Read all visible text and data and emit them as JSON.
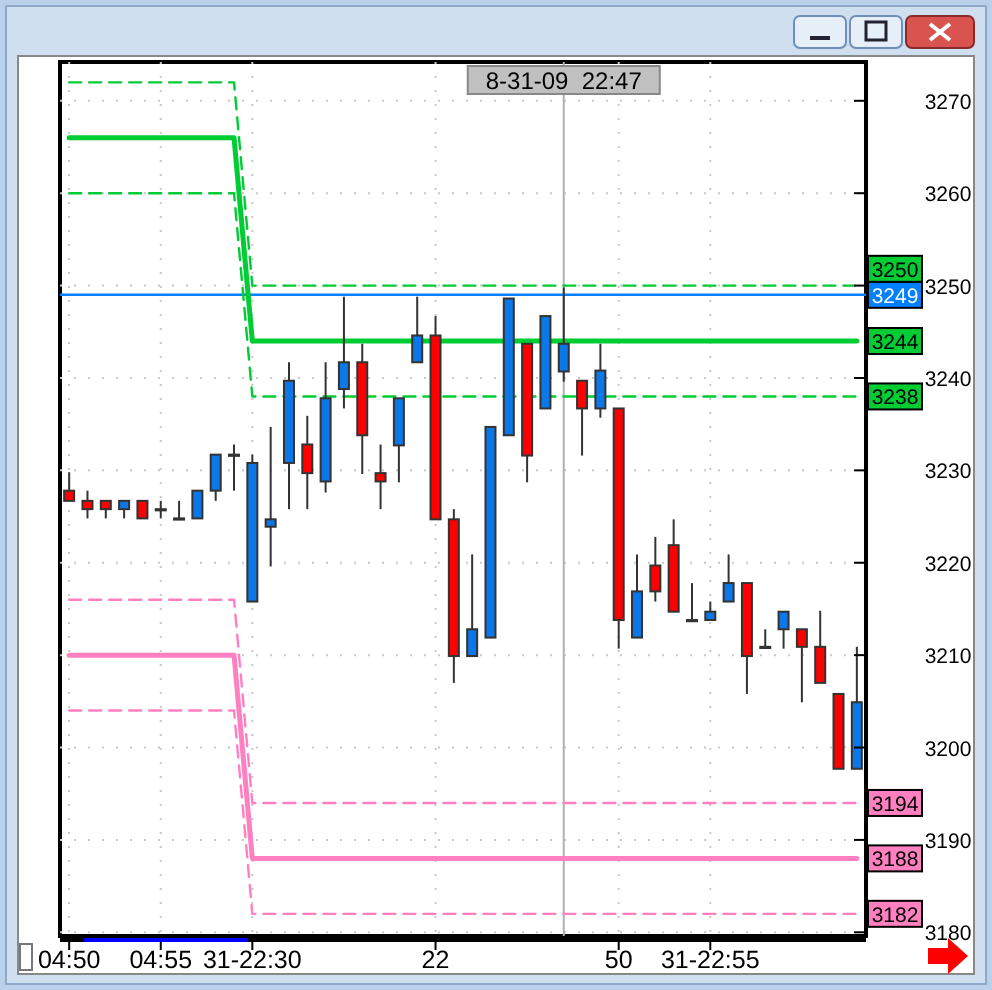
{
  "chart_data": {
    "type": "candlestick",
    "categories": [
      "04:50",
      null,
      null,
      null,
      null,
      "04:55",
      null,
      null,
      null,
      null,
      "31-22:30",
      null,
      null,
      null,
      null,
      null,
      null,
      null,
      null,
      null,
      "22",
      null,
      null,
      null,
      null,
      null,
      null,
      null,
      null,
      null,
      "50",
      null,
      null,
      null,
      null,
      "31-22:55",
      null,
      null,
      null,
      null,
      null,
      null,
      null,
      null
    ],
    "ohlc": [
      [
        3227.8,
        3229.8,
        3226.7,
        3226.7
      ],
      [
        3226.7,
        3227.8,
        3224.8,
        3225.8
      ],
      [
        3226.7,
        3226.7,
        3224.8,
        3225.8
      ],
      [
        3225.8,
        3226.7,
        3224.8,
        3226.7
      ],
      [
        3226.7,
        3226.7,
        3224.8,
        3224.8
      ],
      [
        3225.8,
        3226.7,
        3224.8,
        3225.8
      ],
      [
        3224.8,
        3226.7,
        3224.8,
        3224.8
      ],
      [
        3224.8,
        3227.8,
        3224.8,
        3227.8
      ],
      [
        3227.8,
        3231.7,
        3226.7,
        3231.7
      ],
      [
        3231.7,
        3232.8,
        3227.8,
        3231.7
      ],
      [
        3215.8,
        3231.7,
        3215.8,
        3230.8
      ],
      [
        3223.9,
        3234.7,
        3219.6,
        3224.7
      ],
      [
        3230.8,
        3241.7,
        3225.8,
        3239.7
      ],
      [
        3232.8,
        3235.9,
        3225.8,
        3229.7
      ],
      [
        3228.8,
        3241.7,
        3227.6,
        3237.8
      ],
      [
        3238.8,
        3248.8,
        3236.7,
        3241.7
      ],
      [
        3241.7,
        3243.7,
        3229.6,
        3233.8
      ],
      [
        3229.7,
        3232.8,
        3225.8,
        3228.8
      ],
      [
        3232.7,
        3237.8,
        3228.7,
        3237.8
      ],
      [
        3241.7,
        3248.8,
        3241.7,
        3244.6
      ],
      [
        3244.6,
        3246.7,
        3224.7,
        3224.7
      ],
      [
        3224.7,
        3225.8,
        3207.0,
        3209.9
      ],
      [
        3209.9,
        3220.9,
        3209.9,
        3212.8
      ],
      [
        3211.9,
        3234.7,
        3211.9,
        3234.7
      ],
      [
        3233.8,
        3248.6,
        3233.8,
        3248.6
      ],
      [
        3243.7,
        3243.7,
        3228.7,
        3231.6
      ],
      [
        3236.7,
        3246.7,
        3236.7,
        3246.7
      ],
      [
        3240.7,
        3249.8,
        3239.6,
        3243.7
      ],
      [
        3239.7,
        3239.7,
        3231.6,
        3236.7
      ],
      [
        3236.7,
        3243.7,
        3235.7,
        3240.8
      ],
      [
        3236.7,
        3236.7,
        3210.7,
        3213.8
      ],
      [
        3211.9,
        3220.9,
        3211.9,
        3216.9
      ],
      [
        3219.7,
        3222.8,
        3215.8,
        3216.9
      ],
      [
        3221.9,
        3224.7,
        3214.7,
        3214.7
      ],
      [
        3213.8,
        3217.8,
        3213.8,
        3213.8
      ],
      [
        3213.8,
        3215.8,
        3213.8,
        3214.7
      ],
      [
        3215.8,
        3220.9,
        3215.8,
        3217.8
      ],
      [
        3217.8,
        3217.8,
        3205.8,
        3209.9
      ],
      [
        3210.9,
        3212.8,
        3210.9,
        3210.9
      ],
      [
        3212.8,
        3214.7,
        3210.7,
        3214.7
      ],
      [
        3212.8,
        3212.8,
        3204.9,
        3210.9
      ],
      [
        3210.9,
        3214.8,
        3207.0,
        3207.0
      ],
      [
        3205.8,
        3205.8,
        3197.7,
        3197.7
      ],
      [
        3197.7,
        3210.9,
        3197.7,
        3204.9
      ]
    ],
    "colors": [
      "#ff0000",
      "#ff0000",
      "#ff0000",
      "#0a78e8",
      "#ff0000",
      "#404040",
      "#404040",
      "#0a78e8",
      "#0a78e8",
      "#404040",
      "#0a78e8",
      "#0a78e8",
      "#0a78e8",
      "#ff0000",
      "#0a78e8",
      "#0a78e8",
      "#ff0000",
      "#ff0000",
      "#0a78e8",
      "#0a78e8",
      "#ff0000",
      "#ff0000",
      "#0a78e8",
      "#0a78e8",
      "#0a78e8",
      "#ff0000",
      "#0a78e8",
      "#0a78e8",
      "#ff0000",
      "#0a78e8",
      "#ff0000",
      "#0a78e8",
      "#ff0000",
      "#ff0000",
      "#404040",
      "#0a78e8",
      "#0a78e8",
      "#ff0000",
      "#404040",
      "#0a78e8",
      "#ff0000",
      "#ff0000",
      "#ff0000",
      "#0a78e8"
    ],
    "ylim": [
      3179.6,
      3274.2
    ],
    "yticks": [
      3180,
      3190,
      3200,
      3210,
      3220,
      3230,
      3240,
      3250,
      3260,
      3270
    ],
    "grid": true,
    "series": [
      {
        "type": "line",
        "color": "#00cc33",
        "line_style": "dashed",
        "values": [
          3272,
          3272,
          3272,
          3272,
          3272,
          3272,
          3272,
          3272,
          3272,
          3272,
          3250,
          3250,
          3250,
          3250,
          3250,
          3250,
          3250,
          3250,
          3250,
          3250,
          3250,
          3250,
          3250,
          3250,
          3250,
          3250,
          3250,
          3250,
          3250,
          3250,
          3250,
          3250,
          3250,
          3250,
          3250,
          3250,
          3250,
          3250,
          3250,
          3250,
          3250,
          3250,
          3250,
          3250
        ],
        "value_labels": [
          null,
          null,
          null,
          null,
          null,
          null,
          null,
          null,
          null,
          null,
          null,
          null,
          null,
          null,
          null,
          null,
          null,
          null,
          null,
          null,
          null,
          null,
          null,
          null,
          null,
          null,
          null,
          null,
          null,
          null,
          null,
          null,
          null,
          null,
          null,
          null,
          null,
          null,
          null,
          null,
          null,
          null,
          null,
          "3250"
        ]
      },
      {
        "type": "line",
        "color": "#00cc33",
        "line_style": "solid",
        "values": [
          3266,
          3266,
          3266,
          3266,
          3266,
          3266,
          3266,
          3266,
          3266,
          3266,
          3244,
          3244,
          3244,
          3244,
          3244,
          3244,
          3244,
          3244,
          3244,
          3244,
          3244,
          3244,
          3244,
          3244,
          3244,
          3244,
          3244,
          3244,
          3244,
          3244,
          3244,
          3244,
          3244,
          3244,
          3244,
          3244,
          3244,
          3244,
          3244,
          3244,
          3244,
          3244,
          3244,
          3244
        ],
        "value_labels": [
          null,
          null,
          null,
          null,
          null,
          null,
          null,
          null,
          null,
          null,
          null,
          null,
          null,
          null,
          null,
          null,
          null,
          null,
          null,
          null,
          null,
          null,
          null,
          null,
          null,
          null,
          null,
          null,
          null,
          null,
          null,
          null,
          null,
          null,
          null,
          null,
          null,
          null,
          null,
          null,
          null,
          null,
          null,
          "3244"
        ]
      },
      {
        "type": "line",
        "color": "#00cc33",
        "line_style": "dashed",
        "values": [
          3260,
          3260,
          3260,
          3260,
          3260,
          3260,
          3260,
          3260,
          3260,
          3260,
          3238,
          3238,
          3238,
          3238,
          3238,
          3238,
          3238,
          3238,
          3238,
          3238,
          3238,
          3238,
          3238,
          3238,
          3238,
          3238,
          3238,
          3238,
          3238,
          3238,
          3238,
          3238,
          3238,
          3238,
          3238,
          3238,
          3238,
          3238,
          3238,
          3238,
          3238,
          3238,
          3238,
          3238
        ],
        "value_labels": [
          null,
          null,
          null,
          null,
          null,
          null,
          null,
          null,
          null,
          null,
          null,
          null,
          null,
          null,
          null,
          null,
          null,
          null,
          null,
          null,
          null,
          null,
          null,
          null,
          null,
          null,
          null,
          null,
          null,
          null,
          null,
          null,
          null,
          null,
          null,
          null,
          null,
          null,
          null,
          null,
          null,
          null,
          null,
          "3238"
        ]
      },
      {
        "type": "line",
        "color": "#ff80c0",
        "line_style": "dashed",
        "values": [
          3216,
          3216,
          3216,
          3216,
          3216,
          3216,
          3216,
          3216,
          3216,
          3216,
          3194,
          3194,
          3194,
          3194,
          3194,
          3194,
          3194,
          3194,
          3194,
          3194,
          3194,
          3194,
          3194,
          3194,
          3194,
          3194,
          3194,
          3194,
          3194,
          3194,
          3194,
          3194,
          3194,
          3194,
          3194,
          3194,
          3194,
          3194,
          3194,
          3194,
          3194,
          3194,
          3194,
          3194
        ],
        "value_labels": [
          null,
          null,
          null,
          null,
          null,
          null,
          null,
          null,
          null,
          null,
          null,
          null,
          null,
          null,
          null,
          null,
          null,
          null,
          null,
          null,
          null,
          null,
          null,
          null,
          null,
          null,
          null,
          null,
          null,
          null,
          null,
          null,
          null,
          null,
          null,
          null,
          null,
          null,
          null,
          null,
          null,
          null,
          null,
          "3194"
        ]
      },
      {
        "type": "line",
        "color": "#ff80c0",
        "line_style": "solid",
        "values": [
          3210,
          3210,
          3210,
          3210,
          3210,
          3210,
          3210,
          3210,
          3210,
          3210,
          3188,
          3188,
          3188,
          3188,
          3188,
          3188,
          3188,
          3188,
          3188,
          3188,
          3188,
          3188,
          3188,
          3188,
          3188,
          3188,
          3188,
          3188,
          3188,
          3188,
          3188,
          3188,
          3188,
          3188,
          3188,
          3188,
          3188,
          3188,
          3188,
          3188,
          3188,
          3188,
          3188,
          3188
        ],
        "value_labels": [
          null,
          null,
          null,
          null,
          null,
          null,
          null,
          null,
          null,
          null,
          null,
          null,
          null,
          null,
          null,
          null,
          null,
          null,
          null,
          null,
          null,
          null,
          null,
          null,
          null,
          null,
          null,
          null,
          null,
          null,
          null,
          null,
          null,
          null,
          null,
          null,
          null,
          null,
          null,
          null,
          null,
          null,
          null,
          "3188"
        ]
      },
      {
        "type": "line",
        "color": "#ff80c0",
        "line_style": "dashed",
        "values": [
          3204,
          3204,
          3204,
          3204,
          3204,
          3204,
          3204,
          3204,
          3204,
          3204,
          3182,
          3182,
          3182,
          3182,
          3182,
          3182,
          3182,
          3182,
          3182,
          3182,
          3182,
          3182,
          3182,
          3182,
          3182,
          3182,
          3182,
          3182,
          3182,
          3182,
          3182,
          3182,
          3182,
          3182,
          3182,
          3182,
          3182,
          3182,
          3182,
          3182,
          3182,
          3182,
          3182,
          3182
        ],
        "value_labels": [
          null,
          null,
          null,
          null,
          null,
          null,
          null,
          null,
          null,
          null,
          null,
          null,
          null,
          null,
          null,
          null,
          null,
          null,
          null,
          null,
          null,
          null,
          null,
          null,
          null,
          null,
          null,
          null,
          null,
          null,
          null,
          null,
          null,
          null,
          null,
          null,
          null,
          null,
          null,
          null,
          null,
          null,
          null,
          "3182"
        ]
      }
    ],
    "ref_lines": [
      {
        "axis": "y",
        "value": 3249,
        "label": "3249",
        "color": "#0080ff"
      }
    ],
    "annotations": [
      "8-31-09  22:47"
    ]
  }
}
